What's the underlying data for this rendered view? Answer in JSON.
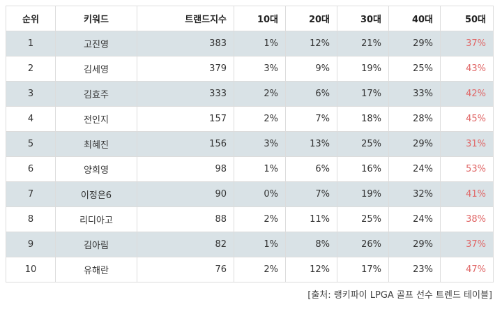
{
  "table": {
    "headers": {
      "rank": "순위",
      "keyword": "키워드",
      "trend_index": "트랜드지수",
      "age10": "10대",
      "age20": "20대",
      "age30": "30대",
      "age40": "40대",
      "age50": "50대"
    },
    "rows": [
      {
        "rank": "1",
        "keyword": "고진영",
        "trend_index": "383",
        "age10": "1%",
        "age20": "12%",
        "age30": "21%",
        "age40": "29%",
        "age50": "37%"
      },
      {
        "rank": "2",
        "keyword": "김세영",
        "trend_index": "379",
        "age10": "3%",
        "age20": "9%",
        "age30": "19%",
        "age40": "25%",
        "age50": "43%"
      },
      {
        "rank": "3",
        "keyword": "김효주",
        "trend_index": "333",
        "age10": "2%",
        "age20": "6%",
        "age30": "17%",
        "age40": "33%",
        "age50": "42%"
      },
      {
        "rank": "4",
        "keyword": "전인지",
        "trend_index": "157",
        "age10": "2%",
        "age20": "7%",
        "age30": "18%",
        "age40": "28%",
        "age50": "45%"
      },
      {
        "rank": "5",
        "keyword": "최혜진",
        "trend_index": "156",
        "age10": "3%",
        "age20": "13%",
        "age30": "25%",
        "age40": "29%",
        "age50": "31%"
      },
      {
        "rank": "6",
        "keyword": "양희영",
        "trend_index": "98",
        "age10": "1%",
        "age20": "6%",
        "age30": "16%",
        "age40": "24%",
        "age50": "53%"
      },
      {
        "rank": "7",
        "keyword": "이정은6",
        "trend_index": "90",
        "age10": "0%",
        "age20": "7%",
        "age30": "19%",
        "age40": "32%",
        "age50": "41%"
      },
      {
        "rank": "8",
        "keyword": "리디아고",
        "trend_index": "88",
        "age10": "2%",
        "age20": "11%",
        "age30": "25%",
        "age40": "24%",
        "age50": "38%"
      },
      {
        "rank": "9",
        "keyword": "김아림",
        "trend_index": "82",
        "age10": "1%",
        "age20": "8%",
        "age30": "26%",
        "age40": "29%",
        "age50": "37%"
      },
      {
        "rank": "10",
        "keyword": "유해란",
        "trend_index": "76",
        "age10": "2%",
        "age20": "12%",
        "age30": "17%",
        "age40": "23%",
        "age50": "47%"
      }
    ]
  },
  "source_note": "[출처: 랭키파이 LPGA 골프 선수 트렌드 테이블]",
  "colors": {
    "shaded_row": "#d9e2e6",
    "highlight_text": "#e06666"
  }
}
